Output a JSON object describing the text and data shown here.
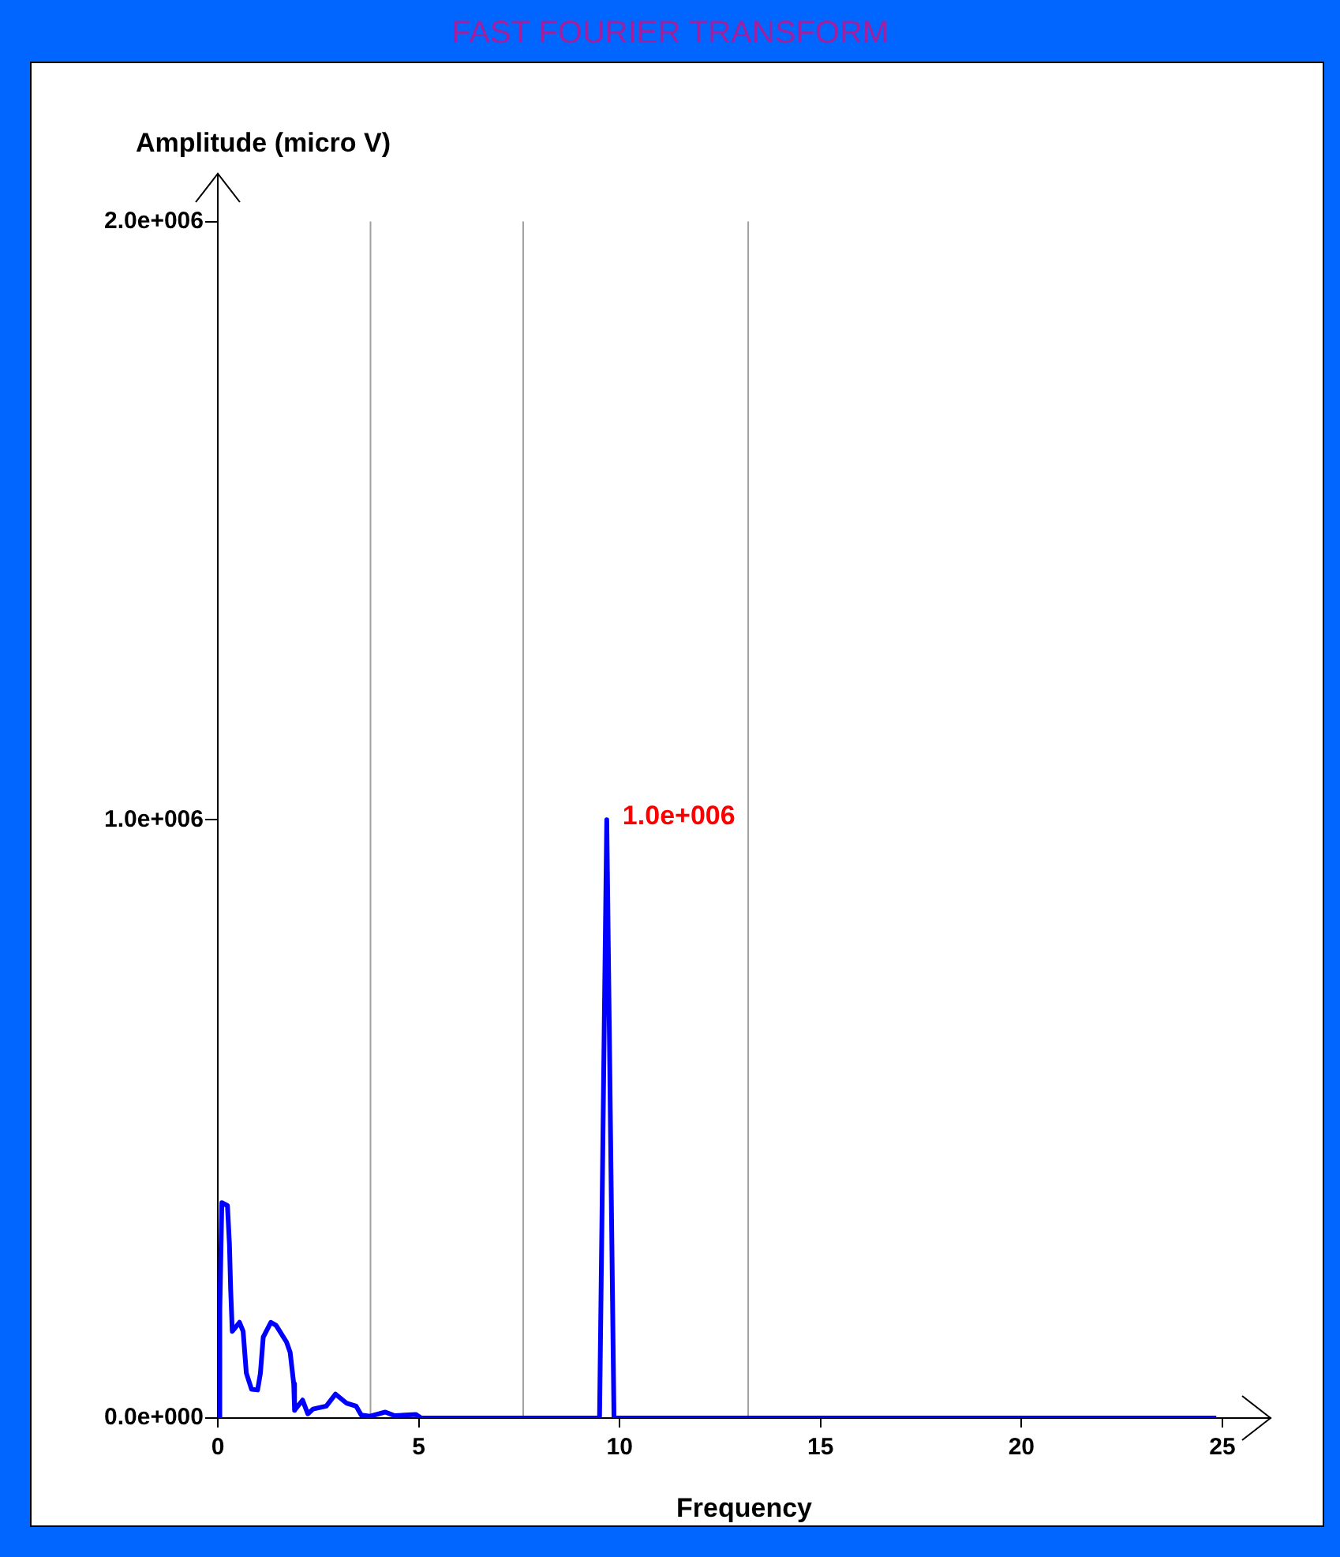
{
  "chart_data": {
    "type": "line",
    "title": "FAST FOURIER TRANSFORM",
    "xlabel": "Frequency",
    "ylabel": "Amplitude (micro V)",
    "xlim": [
      0,
      26.2
    ],
    "xticks": [
      0,
      5,
      10,
      15,
      20,
      25
    ],
    "ylim": [
      0,
      2080000
    ],
    "yticks": [
      {
        "value": 0,
        "label": "0.0e+000"
      },
      {
        "value": 1000000,
        "label": "1.0e+006"
      },
      {
        "value": 2000000,
        "label": "2.0e+006"
      }
    ],
    "grid": false,
    "legend": false,
    "marker": "none",
    "line_style": "solid",
    "ref_lines": [
      {
        "axis": "x",
        "value": 3.8,
        "color": "#a0a0a0"
      },
      {
        "axis": "x",
        "value": 7.6,
        "color": "#a0a0a0"
      },
      {
        "axis": "x",
        "value": 13.2,
        "color": "#a0a0a0"
      }
    ],
    "annotations": [
      {
        "text": "1.0e+006",
        "x": 9.68,
        "y": 1000000
      }
    ],
    "series": [
      {
        "color": "#0000ff",
        "x": [
          0.05,
          0.05,
          0.1,
          0.24,
          0.29,
          0.32,
          0.36,
          0.54,
          0.63,
          0.71,
          0.84,
          0.99,
          1.06,
          1.13,
          1.32,
          1.45,
          1.71,
          1.8,
          1.89,
          1.91,
          2.11,
          2.24,
          2.37,
          2.7,
          2.93,
          3.2,
          3.44,
          3.57,
          3.79,
          4.17,
          4.4,
          4.93,
          5.06,
          9.5,
          9.56,
          9.62,
          9.68,
          9.74,
          9.8,
          9.86,
          24.85
        ],
        "values": [
          0,
          180000,
          360000,
          355000,
          290000,
          215000,
          145000,
          160000,
          145000,
          75000,
          48000,
          47000,
          75000,
          135000,
          160000,
          155000,
          127000,
          110000,
          57000,
          13000,
          30000,
          7000,
          15000,
          20000,
          40000,
          25000,
          20000,
          5000,
          3000,
          10000,
          4000,
          6000,
          0,
          0,
          330000,
          670000,
          1000000,
          670000,
          330000,
          0,
          0
        ]
      }
    ]
  }
}
